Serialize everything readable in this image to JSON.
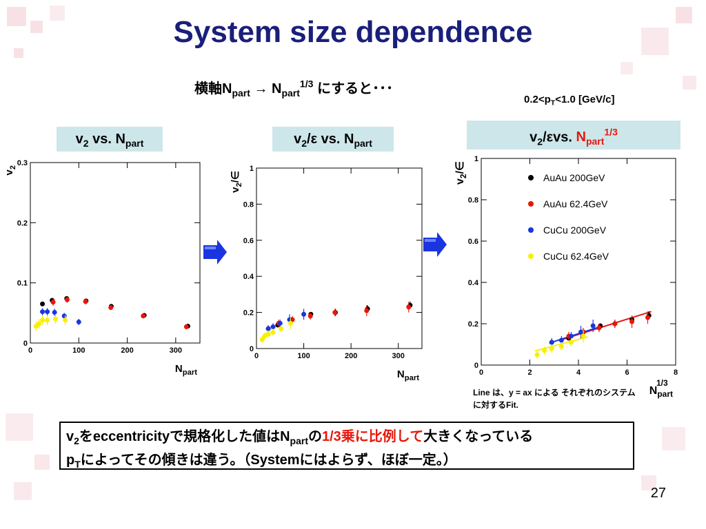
{
  "slide": {
    "title": "System size dependence",
    "subtitle": {
      "pre": "横軸N",
      "sub1": "part",
      "arrow": " → N",
      "sub2": "part",
      "sup": "1/3",
      "post": " にすると･･･"
    },
    "pt_range": {
      "pre": "0.2<p",
      "sub": "T",
      "post": "<1.0 [GeV/c]"
    },
    "panel_labels": [
      {
        "a": "v",
        "a_sub": "2",
        "b": " vs. N",
        "b_sub": "part"
      },
      {
        "a": "v",
        "a_sub": "2",
        "b": "/ε vs. N",
        "b_sub": "part"
      },
      {
        "a": "v",
        "a_sub": "2",
        "b": "/εvs. ",
        "c": "N",
        "c_sub": "part",
        "c_sup": "1/3"
      }
    ],
    "line_note": "Line は、y = ax による それぞれのシステムに対するFit.",
    "summary": {
      "l1_a": "v",
      "l1_a_sub": "2",
      "l1_b": "をeccentricityで規格化した値はN",
      "l1_b_sub": "part",
      "l1_c": "の",
      "l1_red": "1/3乗に比例して",
      "l1_d": "大きくなっている",
      "l2_a": "p",
      "l2_a_sub": "T",
      "l2_b": "によってその傾きは違う。（Systemにはよらず、ほぼ一定。）"
    },
    "page_number": "27",
    "colors": {
      "title": "#1a1f7a",
      "label_bg": "#cde6ea",
      "accent_red": "#e8170a",
      "arrow": "#1a35e0"
    }
  },
  "chart_data": [
    {
      "type": "scatter",
      "title": "",
      "ylabel_main": "v",
      "ylabel_sub": "2",
      "xlabel_main": "N",
      "xlabel_sub": "part",
      "xlim": [
        0,
        350
      ],
      "ylim": [
        0,
        0.3
      ],
      "xticks": [
        0,
        100,
        200,
        300
      ],
      "yticks": [
        0,
        0.1,
        0.2,
        0.3
      ],
      "xtick_labels": [
        "0",
        "100",
        "200",
        "300"
      ],
      "ytick_labels": [
        "0",
        "0.1",
        "0.2",
        "0.3"
      ],
      "series": [
        {
          "name": "AuAu 200GeV",
          "color": "#000000",
          "x": [
            25,
            45,
            75,
            115,
            167,
            235,
            325
          ],
          "y": [
            0.065,
            0.071,
            0.074,
            0.07,
            0.061,
            0.046,
            0.028
          ],
          "err": [
            0.003,
            0.003,
            0.003,
            0.003,
            0.003,
            0.003,
            0.003
          ]
        },
        {
          "name": "AuAu 62.4GeV",
          "color": "#e8170a",
          "x": [
            47,
            76,
            114,
            166,
            233,
            322
          ],
          "y": [
            0.068,
            0.072,
            0.069,
            0.059,
            0.045,
            0.027
          ],
          "err": [
            0.006,
            0.005,
            0.005,
            0.004,
            0.004,
            0.004
          ]
        },
        {
          "name": "CuCu 200GeV",
          "color": "#1a35e0",
          "x": [
            25,
            35,
            50,
            70,
            100
          ],
          "y": [
            0.052,
            0.052,
            0.051,
            0.045,
            0.035
          ],
          "err": [
            0.006,
            0.006,
            0.006,
            0.005,
            0.005
          ]
        },
        {
          "name": "CuCu 62.4GeV",
          "color": "#f7f000",
          "x": [
            12,
            18,
            25,
            35,
            52,
            72
          ],
          "y": [
            0.028,
            0.032,
            0.038,
            0.038,
            0.04,
            0.038
          ],
          "err": [
            0.008,
            0.008,
            0.008,
            0.008,
            0.008,
            0.008
          ]
        }
      ]
    },
    {
      "type": "scatter",
      "title": "",
      "ylabel_main": "v",
      "ylabel_sub": "2",
      "ylabel_post": "/∈",
      "xlabel_main": "N",
      "xlabel_sub": "part",
      "xlim": [
        0,
        350
      ],
      "ylim": [
        0,
        1
      ],
      "xticks": [
        0,
        100,
        200,
        300
      ],
      "yticks": [
        0,
        0.2,
        0.4,
        0.6,
        0.8,
        1
      ],
      "xtick_labels": [
        "0",
        "100",
        "200",
        "300"
      ],
      "ytick_labels": [
        "0",
        "0.2",
        "0.4",
        "0.6",
        "0.8",
        "1"
      ],
      "series": [
        {
          "name": "AuAu 200GeV",
          "color": "#000000",
          "x": [
            25,
            45,
            75,
            115,
            167,
            235,
            325
          ],
          "y": [
            0.11,
            0.13,
            0.16,
            0.19,
            0.2,
            0.22,
            0.24
          ],
          "err": [
            0.01,
            0.01,
            0.01,
            0.01,
            0.02,
            0.02,
            0.02
          ]
        },
        {
          "name": "AuAu 62.4GeV",
          "color": "#e8170a",
          "x": [
            47,
            76,
            114,
            166,
            233,
            322
          ],
          "y": [
            0.14,
            0.16,
            0.18,
            0.2,
            0.21,
            0.23
          ],
          "err": [
            0.02,
            0.02,
            0.02,
            0.02,
            0.03,
            0.03
          ]
        },
        {
          "name": "CuCu 200GeV",
          "color": "#1a35e0",
          "x": [
            25,
            35,
            50,
            70,
            100
          ],
          "y": [
            0.11,
            0.12,
            0.14,
            0.16,
            0.19
          ],
          "err": [
            0.02,
            0.02,
            0.02,
            0.03,
            0.03
          ]
        },
        {
          "name": "CuCu 62.4GeV",
          "color": "#f7f000",
          "x": [
            12,
            18,
            25,
            35,
            52,
            72
          ],
          "y": [
            0.05,
            0.07,
            0.08,
            0.09,
            0.11,
            0.14
          ],
          "err": [
            0.02,
            0.02,
            0.02,
            0.02,
            0.02,
            0.03
          ]
        }
      ]
    },
    {
      "type": "scatter",
      "title": "",
      "ylabel_main": "v",
      "ylabel_sub": "2",
      "ylabel_post": "/∈",
      "xlabel_main": "N",
      "xlabel_sub": "part",
      "xlabel_sup": "1/3",
      "xlim": [
        0,
        8
      ],
      "ylim": [
        0,
        1
      ],
      "xticks": [
        0,
        2,
        4,
        6,
        8
      ],
      "yticks": [
        0,
        0.2,
        0.4,
        0.6,
        0.8,
        1
      ],
      "xtick_labels": [
        "0",
        "2",
        "4",
        "6",
        "8"
      ],
      "ytick_labels": [
        "0",
        "0.2",
        "0.4",
        "0.6",
        "0.8",
        "1"
      ],
      "legend_position": "top-center",
      "series": [
        {
          "name": "AuAu 200GeV",
          "color": "#000000",
          "x": [
            2.9,
            3.6,
            4.2,
            4.9,
            5.5,
            6.2,
            6.9
          ],
          "y": [
            0.11,
            0.13,
            0.16,
            0.19,
            0.2,
            0.22,
            0.24
          ],
          "err": [
            0.01,
            0.01,
            0.01,
            0.01,
            0.02,
            0.02,
            0.02
          ]
        },
        {
          "name": "AuAu 62.4GeV",
          "color": "#e8170a",
          "x": [
            3.6,
            4.2,
            4.85,
            5.5,
            6.2,
            6.85
          ],
          "y": [
            0.14,
            0.16,
            0.18,
            0.2,
            0.21,
            0.23
          ],
          "err": [
            0.02,
            0.02,
            0.02,
            0.02,
            0.03,
            0.03
          ]
        },
        {
          "name": "CuCu 200GeV",
          "color": "#1a35e0",
          "x": [
            2.9,
            3.3,
            3.7,
            4.1,
            4.6
          ],
          "y": [
            0.11,
            0.12,
            0.14,
            0.16,
            0.19
          ],
          "err": [
            0.02,
            0.02,
            0.02,
            0.03,
            0.03
          ]
        },
        {
          "name": "CuCu 62.4GeV",
          "color": "#f7f000",
          "x": [
            2.3,
            2.6,
            2.9,
            3.3,
            3.7,
            4.2
          ],
          "y": [
            0.05,
            0.07,
            0.08,
            0.09,
            0.11,
            0.14
          ],
          "err": [
            0.02,
            0.02,
            0.02,
            0.02,
            0.02,
            0.03
          ]
        }
      ],
      "fit_lines": [
        {
          "color": "#e8170a",
          "slope": 0.037,
          "x_range": [
            3.2,
            7.0
          ]
        },
        {
          "color": "#1a35e0",
          "slope": 0.038,
          "x_range": [
            2.8,
            4.8
          ]
        },
        {
          "color": "#f7f000",
          "slope": 0.031,
          "x_range": [
            2.2,
            4.4
          ]
        }
      ]
    }
  ]
}
